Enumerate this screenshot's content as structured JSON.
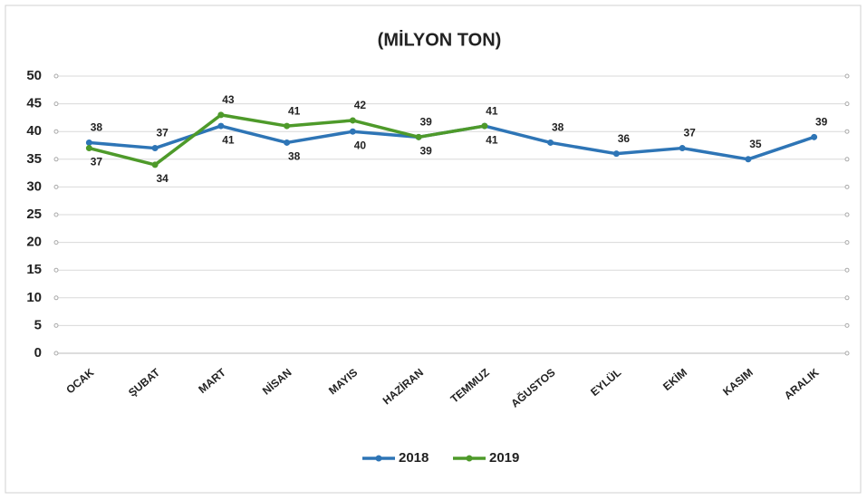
{
  "chart_data": {
    "type": "line",
    "title": "(MİLYON TON)",
    "categories": [
      "OCAK",
      "ŞUBAT",
      "MART",
      "NİSAN",
      "MAYIS",
      "HAZİRAN",
      "TEMMUZ",
      "AĞUSTOS",
      "EYLÜL",
      "EKİM",
      "KASIM",
      "ARALIK"
    ],
    "series": [
      {
        "name": "2018",
        "color": "#2e75b6",
        "values": [
          38,
          37,
          41,
          38,
          40,
          39,
          41,
          38,
          36,
          37,
          35,
          39
        ]
      },
      {
        "name": "2019",
        "color": "#4e9a2a",
        "values": [
          37,
          34,
          43,
          41,
          42,
          39,
          41,
          null,
          null,
          null,
          null,
          null
        ]
      }
    ],
    "ylim": [
      0,
      50
    ],
    "yticks": [
      0,
      5,
      10,
      15,
      20,
      25,
      30,
      35,
      40,
      45,
      50
    ],
    "grid": true,
    "legend": "bottom"
  }
}
